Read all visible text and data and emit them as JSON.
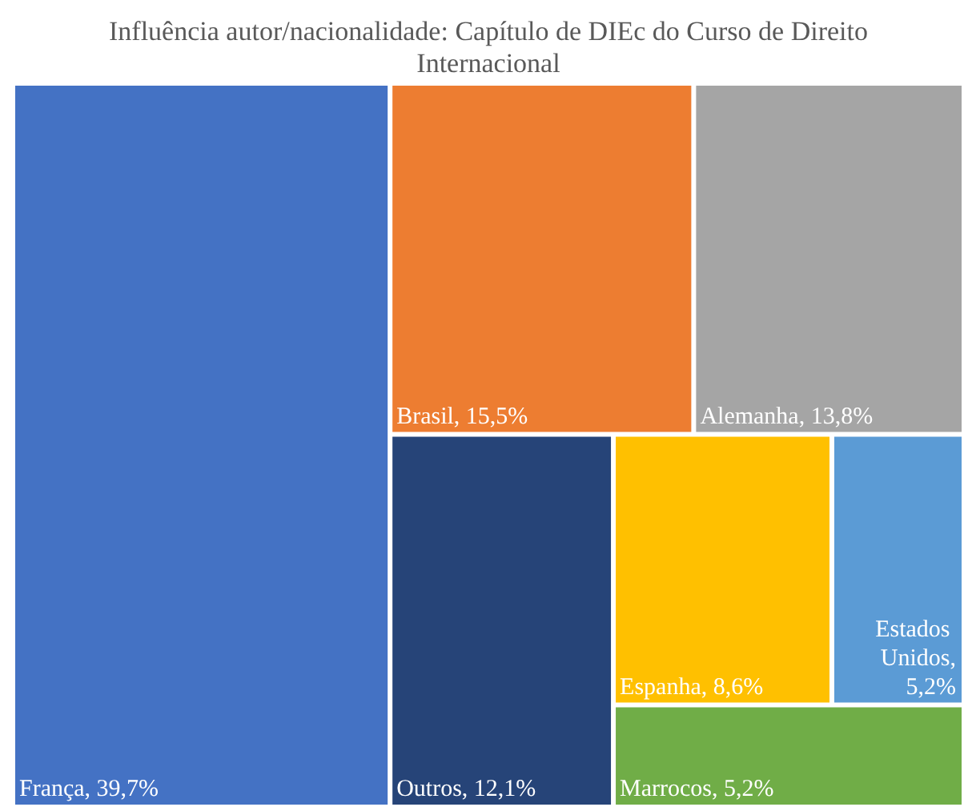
{
  "chart_data": {
    "type": "other",
    "title": "Influência autor/nacionalidade: Capítulo de DIEc do Curso de Direito Internacional",
    "categories": [
      "França",
      "Brasil",
      "Alemanha",
      "Outros",
      "Espanha",
      "Estados Unidos",
      "Marrocos"
    ],
    "values": [
      39.7,
      15.5,
      13.8,
      12.1,
      8.6,
      5.2,
      5.2
    ],
    "value_labels": [
      ", 39,7%",
      ", 15,5%",
      ", 13,8%",
      ", 12,1%",
      ", 8,6%",
      ", 5,2%",
      ", 5,2%"
    ],
    "colors": [
      "#4472c4",
      "#ed7d31",
      "#a5a5a5",
      "#264478",
      "#ffc000",
      "#5b9bd5",
      "#70ad47"
    ]
  }
}
